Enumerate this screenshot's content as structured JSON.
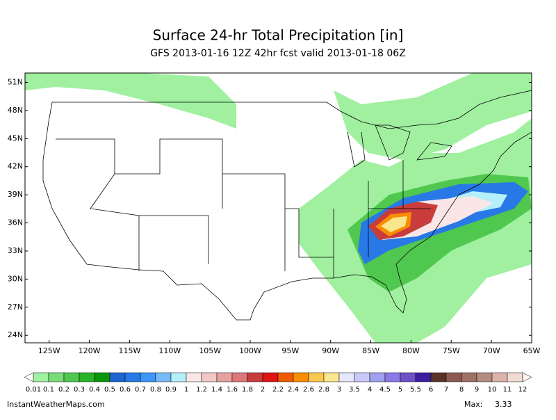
{
  "map": {
    "title": "Surface 24-hr Total Precipitation [in]",
    "subtitle": "GFS 2013-01-16 12Z 42hr fcst valid 2013-01-18 06Z",
    "xlim": [
      -128,
      -65
    ],
    "ylim": [
      23.2,
      52
    ],
    "xticks": [
      {
        "value": -125,
        "label": "125W"
      },
      {
        "value": -120,
        "label": "120W"
      },
      {
        "value": -115,
        "label": "115W"
      },
      {
        "value": -110,
        "label": "110W"
      },
      {
        "value": -105,
        "label": "105W"
      },
      {
        "value": -100,
        "label": "100W"
      },
      {
        "value": -95,
        "label": "95W"
      },
      {
        "value": -90,
        "label": "90W"
      },
      {
        "value": -85,
        "label": "85W"
      },
      {
        "value": -80,
        "label": "80W"
      },
      {
        "value": -75,
        "label": "75W"
      },
      {
        "value": -70,
        "label": "70W"
      },
      {
        "value": -65,
        "label": "65W"
      }
    ],
    "yticks": [
      {
        "value": 24,
        "label": "24N"
      },
      {
        "value": 27,
        "label": "27N"
      },
      {
        "value": 30,
        "label": "30N"
      },
      {
        "value": 33,
        "label": "33N"
      },
      {
        "value": 36,
        "label": "36N"
      },
      {
        "value": 39,
        "label": "39N"
      },
      {
        "value": 42,
        "label": "42N"
      },
      {
        "value": 45,
        "label": "45N"
      },
      {
        "value": 48,
        "label": "48N"
      },
      {
        "value": 51,
        "label": "51N"
      }
    ],
    "colorbar": {
      "levels": [
        0.01,
        0.1,
        0.2,
        0.3,
        0.4,
        0.5,
        0.6,
        0.7,
        0.8,
        0.9,
        1,
        1.2,
        1.4,
        1.6,
        1.8,
        2,
        2.2,
        2.4,
        2.6,
        2.8,
        3,
        3.5,
        4,
        4.5,
        5,
        5.5,
        6,
        7,
        8,
        9,
        10,
        11,
        12
      ],
      "colors": [
        "#ffffff",
        "#a0f0a0",
        "#78dc78",
        "#50c850",
        "#28b428",
        "#0a960a",
        "#1e64d2",
        "#2878e6",
        "#3c96f5",
        "#78b9fa",
        "#b4f0fa",
        "#fae6e6",
        "#f0c8c8",
        "#e6a0a0",
        "#dc7878",
        "#c83c3c",
        "#e11414",
        "#f05a00",
        "#fa8c00",
        "#fac850",
        "#fae68c",
        "#e6e6ff",
        "#c8c8fa",
        "#a0a0f0",
        "#8c78e6",
        "#6e50c8",
        "#3c1ea0",
        "#5a3228",
        "#8c5a50",
        "#a07064",
        "#b48c82",
        "#dcb4aa",
        "#f0dcd2",
        "#fff5f0"
      ]
    },
    "footer": "InstantWeatherMaps.com",
    "max": {
      "label": "Max:",
      "value": 3.33
    }
  }
}
